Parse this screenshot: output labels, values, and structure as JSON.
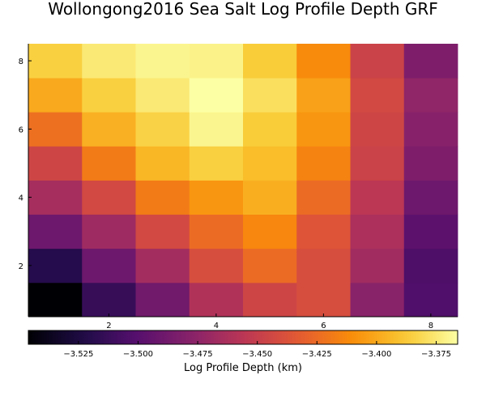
{
  "chart_data": {
    "type": "heatmap",
    "title": "Wollongong2016 Sea Salt Log Profile Depth GRF",
    "x": [
      1,
      2,
      3,
      4,
      5,
      6,
      7,
      8
    ],
    "y": [
      1,
      2,
      3,
      4,
      5,
      6,
      7,
      8
    ],
    "xticks": [
      2,
      4,
      6,
      8
    ],
    "yticks": [
      2,
      4,
      6,
      8
    ],
    "xlim": [
      0.5,
      8.5
    ],
    "ylim": [
      0.5,
      8.5
    ],
    "grid": false,
    "colormap": "inferno",
    "colorbar": {
      "label": "Log Profile Depth (km)",
      "range": [
        -3.546,
        -3.366
      ],
      "ticks": [
        -3.525,
        -3.5,
        -3.475,
        -3.45,
        -3.425,
        -3.4,
        -3.375
      ],
      "tick_labels": [
        "−3.525",
        "−3.500",
        "−3.475",
        "−3.450",
        "−3.425",
        "−3.400",
        "−3.375"
      ]
    },
    "z_rows_bottom_to_top": [
      [
        -3.546,
        -3.513,
        -3.488,
        -3.46,
        -3.445,
        -3.44,
        -3.477,
        -3.503
      ],
      [
        -3.52,
        -3.49,
        -3.466,
        -3.44,
        -3.425,
        -3.44,
        -3.467,
        -3.504
      ],
      [
        -3.49,
        -3.468,
        -3.443,
        -3.425,
        -3.413,
        -3.436,
        -3.462,
        -3.498
      ],
      [
        -3.465,
        -3.443,
        -3.418,
        -3.407,
        -3.398,
        -3.425,
        -3.455,
        -3.49
      ],
      [
        -3.445,
        -3.418,
        -3.395,
        -3.385,
        -3.392,
        -3.415,
        -3.447,
        -3.482
      ],
      [
        -3.423,
        -3.397,
        -3.384,
        -3.37,
        -3.386,
        -3.407,
        -3.445,
        -3.478
      ],
      [
        -3.4,
        -3.385,
        -3.375,
        -3.366,
        -3.379,
        -3.403,
        -3.443,
        -3.474
      ],
      [
        -3.385,
        -3.375,
        -3.37,
        -3.371,
        -3.386,
        -3.412,
        -3.447,
        -3.482
      ]
    ]
  }
}
